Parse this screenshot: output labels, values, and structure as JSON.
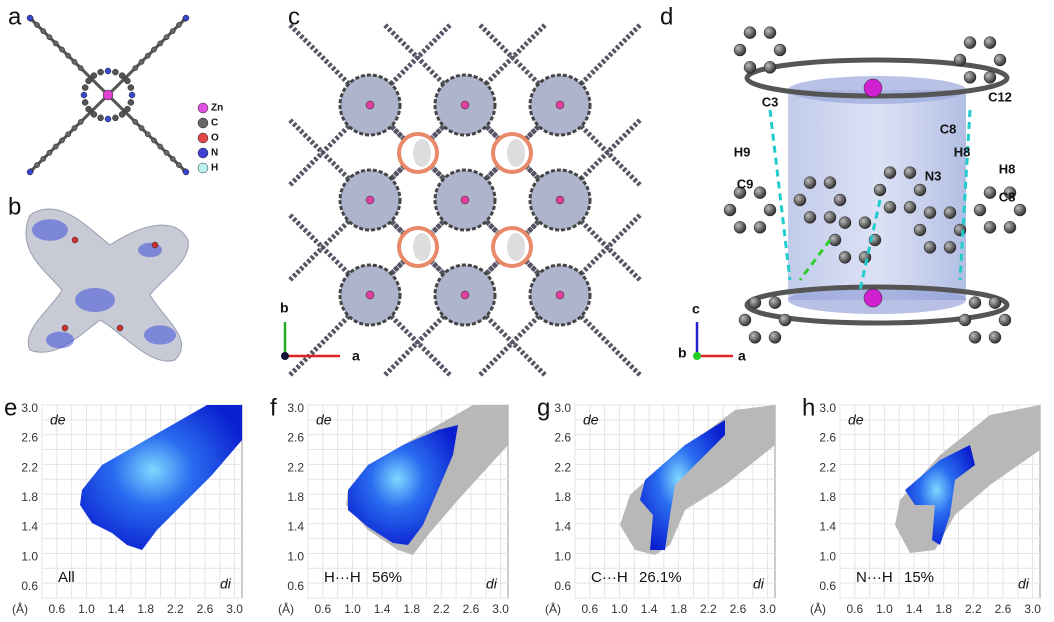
{
  "panels": {
    "a": {
      "label": "a",
      "legend": [
        "Zn",
        "C",
        "O",
        "N",
        "H"
      ]
    },
    "b": {
      "label": "b"
    },
    "c": {
      "label": "c",
      "axes": [
        "b",
        "a"
      ]
    },
    "d": {
      "label": "d",
      "axes": [
        "c",
        "b",
        "a"
      ],
      "atoms": [
        "C3",
        "C12",
        "C8",
        "H8",
        "H8",
        "H9",
        "C9",
        "N3",
        "C8"
      ]
    }
  },
  "fingerprints": {
    "x_label": "di",
    "y_label": "de",
    "unit": "(Å)",
    "ticks": [
      {
        "value": 0.6,
        "label": "0.6"
      },
      {
        "value": 1.0,
        "label": "1.0"
      },
      {
        "value": 1.4,
        "label": "1.4"
      },
      {
        "value": 1.8,
        "label": "1.8"
      },
      {
        "value": 2.2,
        "label": "2.2"
      },
      {
        "value": 2.6,
        "label": "2.6"
      },
      {
        "value": 3.0,
        "label": "3.0"
      }
    ],
    "plots": [
      {
        "label": "e",
        "contact": "All"
      },
      {
        "label": "f",
        "contact": "H···H",
        "percent": "56%"
      },
      {
        "label": "g",
        "contact": "C···H",
        "percent": "26.1%"
      },
      {
        "label": "h",
        "contact": "N···H",
        "percent": "15%"
      }
    ]
  }
}
